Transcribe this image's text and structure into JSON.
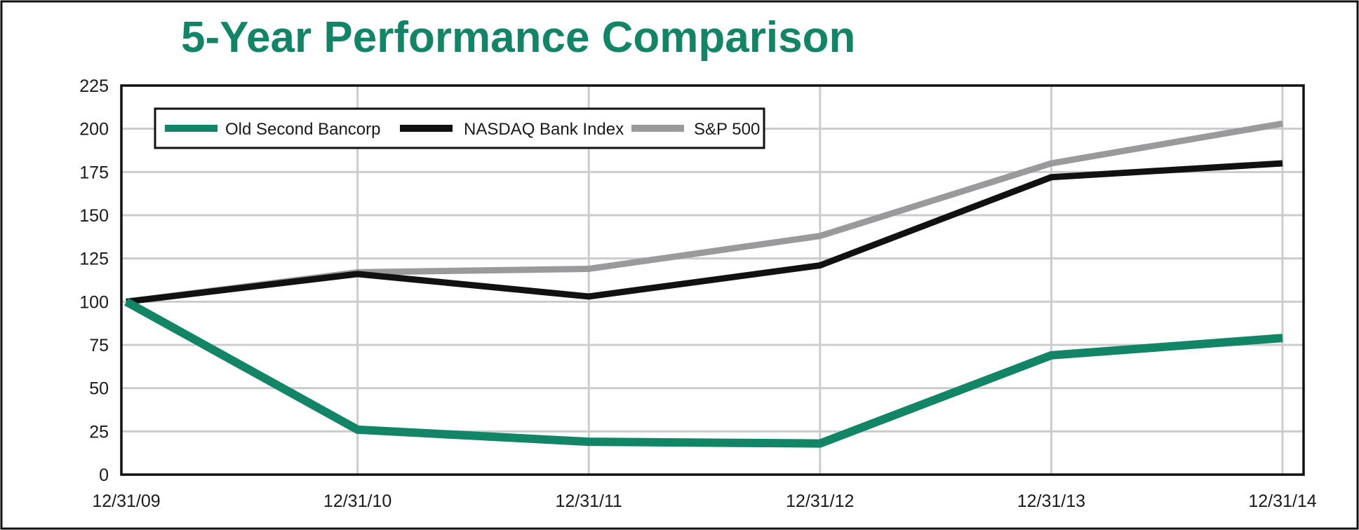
{
  "chart_data": {
    "type": "line",
    "title": "5-Year Performance Comparison",
    "xlabel": "",
    "ylabel": "",
    "categories": [
      "12/31/09",
      "12/31/10",
      "12/31/11",
      "12/31/12",
      "12/31/13",
      "12/31/14"
    ],
    "y_ticks": [
      0,
      25,
      50,
      75,
      100,
      125,
      150,
      175,
      200,
      225
    ],
    "ylim": [
      0,
      225
    ],
    "grid": true,
    "legend_position": "top-left",
    "series": [
      {
        "name": "Old Second Bancorp",
        "color": "#128566",
        "values": [
          100,
          26,
          19,
          18,
          69,
          79
        ]
      },
      {
        "name": "NASDAQ Bank Index",
        "color": "#111111",
        "values": [
          100,
          116,
          103,
          121,
          172,
          180
        ]
      },
      {
        "name": "S&P 500",
        "color": "#9a9a9d",
        "values": [
          100,
          117,
          119,
          138,
          180,
          203
        ]
      }
    ],
    "colors": {
      "title": "#128566",
      "grid": "#cccccc",
      "axis": "#111111"
    }
  }
}
